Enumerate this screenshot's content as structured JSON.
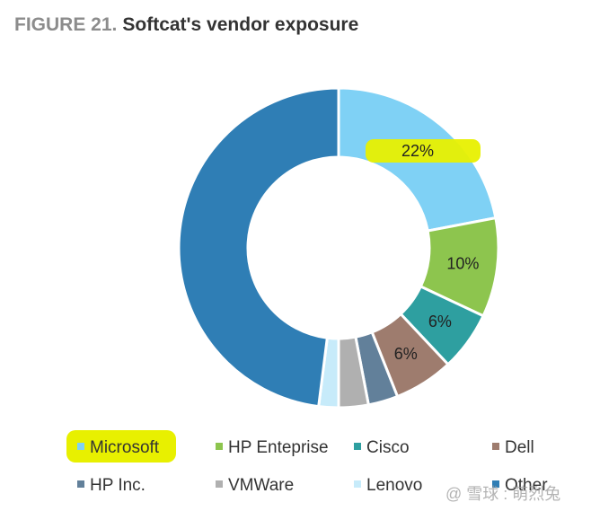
{
  "title": {
    "prefix": "FIGURE 21.",
    "text": "Softcat's vendor exposure"
  },
  "watermark": "@ 雪球 : 萌烈兔",
  "colors": {
    "highlight": "#e8f000",
    "border": "#ffffff"
  },
  "chart_data": {
    "type": "pie",
    "variant": "donut",
    "title": "Softcat's vendor exposure",
    "start": "12 o'clock, clockwise",
    "legend_position": "bottom",
    "categories": [
      "Microsoft",
      "HP Enteprise",
      "Cisco",
      "Dell",
      "HP Inc.",
      "VMWare",
      "Lenovo",
      "Other"
    ],
    "values": [
      22,
      10,
      6,
      6,
      3,
      3,
      2,
      48
    ],
    "colors": [
      "#7fd1f5",
      "#8dc54e",
      "#2e9fa0",
      "#9e7c6e",
      "#62809a",
      "#b0b0b0",
      "#c7ebfa",
      "#2f7eb5"
    ],
    "data_labels": [
      "22%",
      "10%",
      "6%",
      "6%",
      "",
      "",
      "",
      ""
    ],
    "highlighted": [
      "Microsoft"
    ]
  }
}
